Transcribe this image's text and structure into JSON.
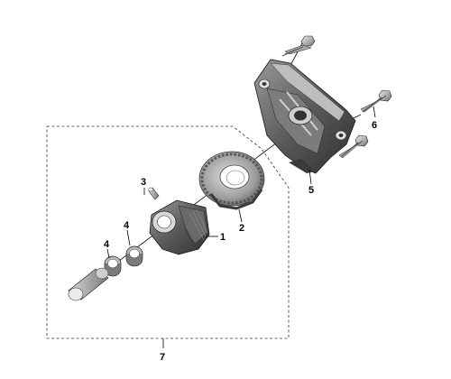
{
  "diagram": {
    "callouts": [
      {
        "id": "1",
        "text": "1"
      },
      {
        "id": "2",
        "text": "2"
      },
      {
        "id": "3",
        "text": "3"
      },
      {
        "id": "4a",
        "text": "4"
      },
      {
        "id": "4b",
        "text": "4"
      },
      {
        "id": "5",
        "text": "5"
      },
      {
        "id": "6",
        "text": "6"
      },
      {
        "id": "7",
        "text": "7"
      }
    ]
  }
}
